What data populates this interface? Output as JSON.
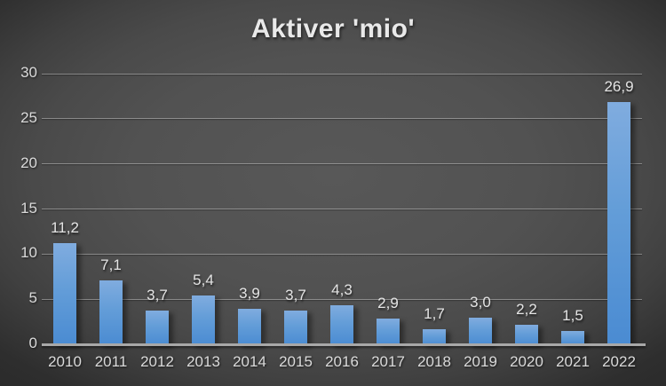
{
  "chart_data": {
    "type": "bar",
    "title": "Aktiver 'mio'",
    "categories": [
      "2010",
      "2011",
      "2012",
      "2013",
      "2014",
      "2015",
      "2016",
      "2017",
      "2018",
      "2019",
      "2020",
      "2021",
      "2022"
    ],
    "values": [
      11.2,
      7.1,
      3.7,
      5.4,
      3.9,
      3.7,
      4.3,
      2.9,
      1.7,
      3.0,
      2.2,
      1.5,
      26.9
    ],
    "value_labels": [
      "11,2",
      "7,1",
      "3,7",
      "5,4",
      "3,9",
      "3,7",
      "4,3",
      "2,9",
      "1,7",
      "3,0",
      "2,2",
      "1,5",
      "26,9"
    ],
    "xlabel": "",
    "ylabel": "",
    "ylim": [
      0,
      30
    ],
    "yticks": [
      0,
      5,
      10,
      15,
      20,
      25,
      30
    ],
    "grid": "horizontal",
    "legend": "none",
    "colors": {
      "bar_top": "#80acdf",
      "bar_bottom": "#4a8bd2",
      "background_center": "#585858",
      "background_edge": "#222222",
      "gridline": "#8f8f8f",
      "axis_line": "#a8a8a8",
      "tick_text": "#dadada",
      "title_text": "#e9e9e9"
    }
  }
}
